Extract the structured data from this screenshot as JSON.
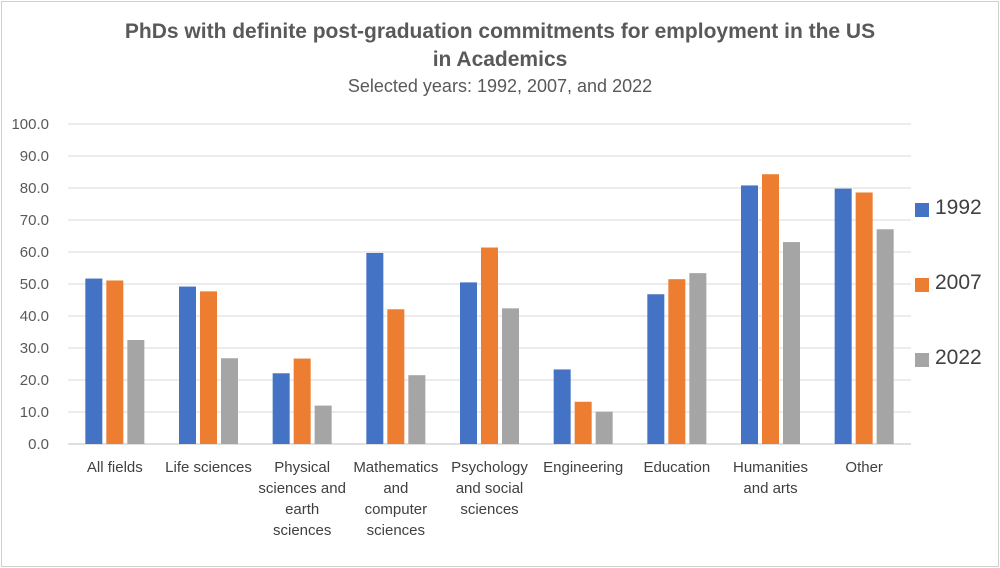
{
  "chart_data": {
    "type": "bar",
    "title_line1": "PhDs with definite post-graduation commitments for employment in the US",
    "title_line2": "in Academics",
    "subtitle": "Selected years: 1992, 2007, and 2022",
    "xlabel": "",
    "ylabel": "",
    "ylim": [
      0,
      100
    ],
    "yticks": [
      "0.0",
      "10.0",
      "20.0",
      "30.0",
      "40.0",
      "50.0",
      "60.0",
      "70.0",
      "80.0",
      "90.0",
      "100.0"
    ],
    "grid": true,
    "legend_position": "right",
    "categories": [
      [
        "All fields"
      ],
      [
        "Life sciences"
      ],
      [
        "Physical",
        "sciences and",
        "earth",
        "sciences"
      ],
      [
        "Mathematics",
        "and",
        "computer",
        "sciences"
      ],
      [
        "Psychology",
        "and social",
        "sciences"
      ],
      [
        "Engineering"
      ],
      [
        "Education"
      ],
      [
        "Humanities",
        "and arts"
      ],
      [
        "Other"
      ]
    ],
    "series": [
      {
        "name": "1992",
        "color": "#4472C4",
        "values": [
          51.7,
          49.2,
          22.1,
          59.7,
          50.5,
          23.3,
          46.8,
          80.8,
          79.8
        ]
      },
      {
        "name": "2007",
        "color": "#ED7D31",
        "values": [
          51.1,
          47.7,
          26.7,
          42.1,
          61.4,
          13.2,
          51.5,
          84.3,
          78.6
        ]
      },
      {
        "name": "2022",
        "color": "#A5A5A5",
        "values": [
          32.5,
          26.8,
          12.0,
          21.5,
          42.4,
          10.1,
          53.4,
          63.1,
          67.1
        ]
      }
    ]
  }
}
